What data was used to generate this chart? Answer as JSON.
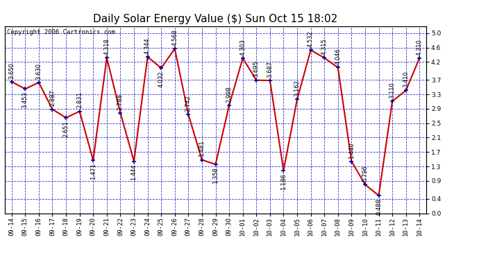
{
  "title": "Daily Solar Energy Value ($) Sun Oct 15 18:02",
  "copyright": "Copyright 2006 Cartronics.com",
  "x_labels": [
    "09-14",
    "09-15",
    "09-16",
    "09-17",
    "09-18",
    "09-19",
    "09-20",
    "09-21",
    "09-22",
    "09-23",
    "09-24",
    "09-25",
    "09-26",
    "09-27",
    "09-28",
    "09-29",
    "09-30",
    "10-01",
    "10-02",
    "10-03",
    "10-04",
    "10-05",
    "10-06",
    "10-07",
    "10-08",
    "10-09",
    "10-10",
    "10-11",
    "10-12",
    "10-13",
    "10-14"
  ],
  "y_values": [
    3.65,
    3.453,
    3.63,
    2.887,
    2.651,
    2.831,
    1.471,
    4.318,
    2.788,
    1.444,
    4.344,
    4.032,
    4.568,
    2.742,
    1.481,
    1.358,
    2.998,
    4.303,
    3.695,
    3.687,
    1.186,
    3.162,
    4.532,
    4.315,
    4.046,
    1.44,
    0.796,
    0.488,
    3.11,
    3.41,
    4.31
  ],
  "y_ticks_right": [
    0.0,
    0.4,
    0.9,
    1.3,
    1.7,
    2.1,
    2.5,
    2.9,
    3.3,
    3.7,
    4.2,
    4.6,
    5.0
  ],
  "ylim": [
    0.0,
    5.2
  ],
  "line_color": "#cc0000",
  "marker_color": "#000099",
  "bg_color": "#ffffff",
  "grid_color": "#0000cc",
  "title_fontsize": 11,
  "tick_fontsize": 6.5,
  "annotation_fontsize": 6,
  "copyright_fontsize": 6.5
}
